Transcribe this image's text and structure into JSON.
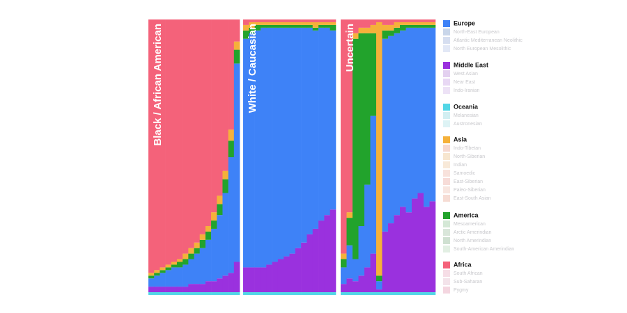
{
  "chart_data": [
    {
      "type": "stacked-bar",
      "title": "Black / African American",
      "ylim": [
        0,
        100
      ],
      "series": [
        {
          "name": "Oceania",
          "color": "#52d6e6",
          "values": [
            1,
            1,
            1,
            1,
            1,
            1,
            1,
            1,
            1,
            1,
            1,
            1,
            1,
            1,
            1,
            1
          ]
        },
        {
          "name": "Middle East",
          "color": "#9a31de",
          "values": [
            2,
            2,
            2,
            2,
            2,
            2,
            2,
            3,
            3,
            3,
            4,
            4,
            5,
            6,
            7,
            11
          ]
        },
        {
          "name": "Europe",
          "color": "#3e82f7",
          "values": [
            3,
            4,
            5,
            6,
            7,
            7,
            8,
            9,
            11,
            13,
            15,
            19,
            23,
            30,
            42,
            72
          ]
        },
        {
          "name": "America",
          "color": "#22a32c",
          "values": [
            1,
            1,
            1,
            1,
            1,
            2,
            2,
            2,
            2,
            3,
            3,
            3,
            4,
            5,
            6,
            5
          ]
        },
        {
          "name": "Asia",
          "color": "#f5b13a",
          "values": [
            1,
            1,
            1,
            1,
            1,
            1,
            2,
            2,
            2,
            2,
            2,
            3,
            3,
            3,
            4,
            3
          ]
        },
        {
          "name": "Africa",
          "color": "#f4627a",
          "values": [
            92,
            91,
            90,
            89,
            88,
            87,
            85,
            83,
            81,
            78,
            75,
            70,
            64,
            55,
            40,
            8
          ]
        }
      ]
    },
    {
      "type": "stacked-bar",
      "title": "White / Caucasian",
      "ylim": [
        0,
        100
      ],
      "series": [
        {
          "name": "Oceania",
          "color": "#52d6e6",
          "values": [
            1,
            1,
            1,
            1,
            1,
            1,
            1,
            1,
            1,
            1,
            1,
            1,
            1,
            1,
            1,
            1
          ]
        },
        {
          "name": "Middle East",
          "color": "#9a31de",
          "values": [
            9,
            9,
            9,
            9,
            10,
            11,
            12,
            13,
            14,
            16,
            18,
            21,
            23,
            26,
            28,
            30
          ]
        },
        {
          "name": "Europe",
          "color": "#3e82f7",
          "values": [
            83,
            85,
            86,
            87,
            86,
            85,
            84,
            83,
            82,
            80,
            78,
            75,
            72,
            70,
            68,
            65
          ]
        },
        {
          "name": "America",
          "color": "#22a32c",
          "values": [
            3,
            2,
            2,
            1,
            1,
            1,
            1,
            1,
            1,
            1,
            1,
            1,
            1,
            1,
            1,
            2
          ]
        },
        {
          "name": "Asia",
          "color": "#f5b13a",
          "values": [
            2,
            2,
            1,
            1,
            1,
            1,
            1,
            1,
            1,
            1,
            1,
            1,
            2,
            1,
            1,
            1
          ]
        },
        {
          "name": "Africa",
          "color": "#f4627a",
          "values": [
            2,
            1,
            1,
            1,
            1,
            1,
            1,
            1,
            1,
            1,
            1,
            1,
            1,
            1,
            1,
            1
          ]
        }
      ]
    },
    {
      "type": "stacked-bar",
      "title": "Uncertain",
      "ylim": [
        0,
        100
      ],
      "series": [
        {
          "name": "Oceania",
          "color": "#52d6e6",
          "values": [
            1,
            1,
            1,
            1,
            1,
            1,
            1,
            1,
            1,
            1,
            1,
            1,
            1,
            1,
            1,
            1
          ]
        },
        {
          "name": "Middle East",
          "color": "#9a31de",
          "values": [
            3,
            5,
            4,
            6,
            9,
            14,
            1,
            22,
            25,
            28,
            31,
            29,
            34,
            36,
            31,
            33
          ]
        },
        {
          "name": "Europe",
          "color": "#3e82f7",
          "values": [
            6,
            12,
            8,
            18,
            30,
            50,
            3,
            70,
            68,
            66,
            64,
            67,
            62,
            60,
            65,
            63
          ]
        },
        {
          "name": "America",
          "color": "#22a32c",
          "values": [
            3,
            10,
            80,
            70,
            55,
            30,
            2,
            3,
            2,
            2,
            2,
            1,
            1,
            1,
            1,
            1
          ]
        },
        {
          "name": "Asia",
          "color": "#f5b13a",
          "values": [
            2,
            2,
            2,
            2,
            2,
            3,
            92,
            2,
            2,
            2,
            1,
            1,
            1,
            1,
            1,
            1
          ]
        },
        {
          "name": "Africa",
          "color": "#f4627a",
          "values": [
            85,
            70,
            5,
            3,
            3,
            2,
            1,
            2,
            2,
            1,
            1,
            1,
            1,
            1,
            1,
            1
          ]
        }
      ]
    }
  ],
  "legend": {
    "groups": [
      {
        "name": "Europe",
        "color": "#3e82f7",
        "subgroups": [
          {
            "name": "North-East European",
            "color": "#c9d6ea"
          },
          {
            "name": "Atlantic Mediterranean Neolithic",
            "color": "#d6def0"
          },
          {
            "name": "North European Mesolithic",
            "color": "#e2e8f6"
          }
        ]
      },
      {
        "name": "Middle East",
        "color": "#9a31de",
        "subgroups": [
          {
            "name": "West Asian",
            "color": "#e3d0f0"
          },
          {
            "name": "Near East",
            "color": "#e8d8f4"
          },
          {
            "name": "Indo-Iranian",
            "color": "#ede2f6"
          }
        ]
      },
      {
        "name": "Oceania",
        "color": "#52d6e6",
        "subgroups": [
          {
            "name": "Melanesian",
            "color": "#d2eff2"
          },
          {
            "name": "Austronesian",
            "color": "#ddf3f5"
          }
        ]
      },
      {
        "name": "Asia",
        "color": "#f5b13a",
        "subgroups": [
          {
            "name": "Indo-Tibetan",
            "color": "#f6d9d0"
          },
          {
            "name": "North-Siberian",
            "color": "#f7e6cf"
          },
          {
            "name": "Indian",
            "color": "#f8e9d8"
          },
          {
            "name": "Samoedic",
            "color": "#f8e2dc"
          },
          {
            "name": "East-Siberian",
            "color": "#f7dcd8"
          },
          {
            "name": "Paleo-Siberian",
            "color": "#f8e6e0"
          },
          {
            "name": "East-South Asian",
            "color": "#f6dcd4"
          }
        ]
      },
      {
        "name": "America",
        "color": "#22a32c",
        "subgroups": [
          {
            "name": "Mesoamerican",
            "color": "#d4e8d6"
          },
          {
            "name": "Arctic Amerindian",
            "color": "#d9e6da"
          },
          {
            "name": "North Amerindian",
            "color": "#cfe0d1"
          },
          {
            "name": "South-American Amerindian",
            "color": "#e2efe3"
          }
        ]
      },
      {
        "name": "Africa",
        "color": "#f4627a",
        "subgroups": [
          {
            "name": "South African",
            "color": "#f6dde6"
          },
          {
            "name": "Sub-Saharan",
            "color": "#f3e3ea"
          },
          {
            "name": "Pygmy",
            "color": "#f4d6e0"
          }
        ]
      }
    ]
  }
}
